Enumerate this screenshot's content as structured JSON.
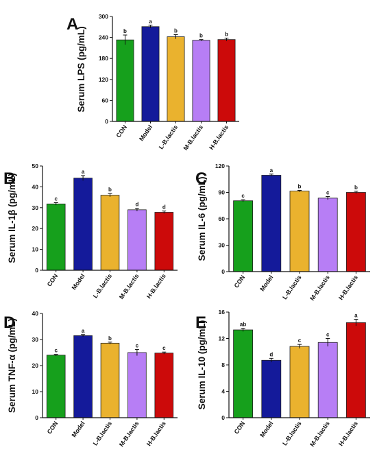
{
  "chart_data": [
    {
      "type": "bar",
      "panel": "A",
      "ylabel": "Serum LPS (pg/mL)",
      "categories": [
        "CON",
        "Model",
        "L-B.lactis",
        "M-B.lactis",
        "H-B.lactis"
      ],
      "values": [
        233,
        271,
        242,
        232,
        234
      ],
      "errors": [
        14,
        4,
        6,
        2,
        4
      ],
      "letters": [
        "b",
        "a",
        "b",
        "b",
        "b"
      ],
      "colors": [
        "#16a01c",
        "#141a9a",
        "#eab22e",
        "#b77ef5",
        "#cc0a0a"
      ],
      "ylim": [
        0,
        300
      ],
      "yticks": [
        "0",
        "60",
        "120",
        "180",
        "240",
        "300"
      ]
    },
    {
      "type": "bar",
      "panel": "B",
      "ylabel": "Serum IL-1β (pg/mL)",
      "categories": [
        "CON",
        "Model",
        "L-B.lactis",
        "M-B.lactis",
        "H-B.lactis"
      ],
      "values": [
        31.8,
        44.2,
        36.0,
        29.0,
        27.8
      ],
      "errors": [
        0.6,
        1.2,
        0.8,
        0.7,
        0.6
      ],
      "letters": [
        "c",
        "a",
        "b",
        "d",
        "d"
      ],
      "colors": [
        "#16a01c",
        "#141a9a",
        "#eab22e",
        "#b77ef5",
        "#cc0a0a"
      ],
      "ylim": [
        0,
        50
      ],
      "yticks": [
        "0",
        "10",
        "20",
        "30",
        "40",
        "50"
      ]
    },
    {
      "type": "bar",
      "panel": "C",
      "ylabel": "Serum IL-6 (pg/mL)",
      "categories": [
        "CON",
        "Model",
        "L-B.lactis",
        "M-B.lactis",
        "H-B.lactis"
      ],
      "values": [
        80.5,
        109.5,
        91.5,
        83.5,
        90.0
      ],
      "errors": [
        1.2,
        1.3,
        0.8,
        1.8,
        1.3
      ],
      "letters": [
        "c",
        "a",
        "b",
        "c",
        "b"
      ],
      "colors": [
        "#16a01c",
        "#141a9a",
        "#eab22e",
        "#b77ef5",
        "#cc0a0a"
      ],
      "ylim": [
        0,
        120
      ],
      "yticks": [
        "0",
        "30",
        "60",
        "90",
        "120"
      ]
    },
    {
      "type": "bar",
      "panel": "D",
      "ylabel": "Serum TNF-α (pg/mL)",
      "categories": [
        "CON",
        "Model",
        "L-B.lactis",
        "M-B.lactis",
        "H-B.lactis"
      ],
      "values": [
        24.0,
        31.5,
        28.6,
        25.0,
        24.8
      ],
      "errors": [
        0.3,
        0.4,
        0.4,
        1.2,
        0.4
      ],
      "letters": [
        "c",
        "a",
        "b",
        "c",
        "c"
      ],
      "colors": [
        "#16a01c",
        "#141a9a",
        "#eab22e",
        "#b77ef5",
        "#cc0a0a"
      ],
      "ylim": [
        0,
        40
      ],
      "yticks": [
        "0",
        "10",
        "20",
        "30",
        "40"
      ]
    },
    {
      "type": "bar",
      "panel": "E",
      "ylabel": "Serum IL-10 (pg/mL)",
      "categories": [
        "CON",
        "Model",
        "L-B.lactis",
        "M-B.lactis",
        "H-B.lactis"
      ],
      "values": [
        13.3,
        8.7,
        10.8,
        11.4,
        14.4
      ],
      "errors": [
        0.25,
        0.3,
        0.3,
        0.6,
        0.5
      ],
      "letters": [
        "ab",
        "d",
        "c",
        "c",
        "a"
      ],
      "colors": [
        "#16a01c",
        "#141a9a",
        "#eab22e",
        "#b77ef5",
        "#cc0a0a"
      ],
      "ylim": [
        0,
        16
      ],
      "yticks": [
        "0",
        "4",
        "8",
        "12",
        "16"
      ]
    }
  ]
}
